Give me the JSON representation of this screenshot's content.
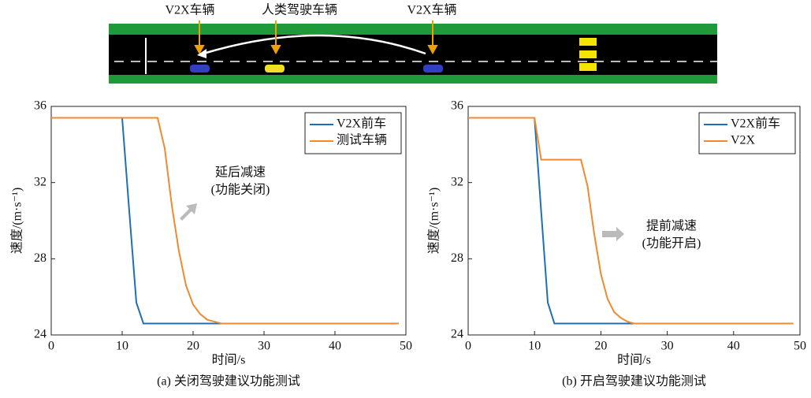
{
  "diagram": {
    "labels": [
      "V2X车辆",
      "人类驾驶车辆",
      "V2X车辆"
    ]
  },
  "chart_data": [
    {
      "type": "line",
      "caption": "(a) 关闭驾驶建议功能测试",
      "xlabel": "时间/s",
      "ylabel": "速度/(m·s⁻¹)",
      "annotation": [
        "延后减速",
        "(功能关闭)"
      ],
      "x": [
        0,
        5,
        9,
        10,
        11,
        12,
        13,
        14,
        15,
        16,
        17,
        18,
        19,
        20,
        21,
        22,
        23,
        24,
        25,
        26,
        30,
        35,
        40,
        45,
        49
      ],
      "series": [
        {
          "name": "V2X前车",
          "color": "#1f6fb4",
          "values": [
            35.4,
            35.4,
            35.4,
            35.4,
            30.5,
            25.7,
            24.6,
            24.6,
            24.6,
            24.6,
            24.6,
            24.6,
            24.6,
            24.6,
            24.6,
            24.6,
            24.6,
            24.6,
            24.6,
            24.6,
            24.6,
            24.6,
            24.6,
            24.6,
            24.6
          ]
        },
        {
          "name": "测试车辆",
          "color": "#f08a30",
          "values": [
            35.4,
            35.4,
            35.4,
            35.4,
            35.4,
            35.4,
            35.4,
            35.4,
            35.4,
            33.8,
            30.8,
            28.4,
            26.6,
            25.6,
            25.1,
            24.8,
            24.7,
            24.6,
            24.6,
            24.6,
            24.6,
            24.6,
            24.6,
            24.6,
            24.6
          ]
        }
      ],
      "xlim": [
        0,
        50
      ],
      "xticks": [
        0,
        10,
        20,
        30,
        40,
        50
      ],
      "ylim": [
        24,
        36
      ],
      "yticks": [
        24,
        28,
        32,
        36
      ],
      "legend": "upper right"
    },
    {
      "type": "line",
      "caption": "(b) 开启驾驶建议功能测试",
      "xlabel": "时间/s",
      "ylabel": "速度/(m·s⁻¹)",
      "annotation": [
        "提前减速",
        "(功能开启)"
      ],
      "x": [
        0,
        5,
        9,
        10,
        11,
        12,
        13,
        14,
        15,
        16,
        17,
        18,
        19,
        20,
        21,
        22,
        23,
        24,
        25,
        26,
        30,
        35,
        40,
        45,
        49
      ],
      "series": [
        {
          "name": "V2X前车",
          "color": "#1f6fb4",
          "values": [
            35.4,
            35.4,
            35.4,
            35.4,
            30.5,
            25.7,
            24.6,
            24.6,
            24.6,
            24.6,
            24.6,
            24.6,
            24.6,
            24.6,
            24.6,
            24.6,
            24.6,
            24.6,
            24.6,
            24.6,
            24.6,
            24.6,
            24.6,
            24.6,
            24.6
          ]
        },
        {
          "name": "V2X",
          "color": "#f08a30",
          "values": [
            35.4,
            35.4,
            35.4,
            35.4,
            33.2,
            33.2,
            33.2,
            33.2,
            33.2,
            33.2,
            33.2,
            31.8,
            29.3,
            27.2,
            25.9,
            25.2,
            24.9,
            24.7,
            24.6,
            24.6,
            24.6,
            24.6,
            24.6,
            24.6,
            24.6
          ]
        }
      ],
      "xlim": [
        0,
        50
      ],
      "xticks": [
        0,
        10,
        20,
        30,
        40,
        50
      ],
      "ylim": [
        24,
        36
      ],
      "yticks": [
        24,
        28,
        32,
        36
      ],
      "legend": "upper right"
    }
  ]
}
